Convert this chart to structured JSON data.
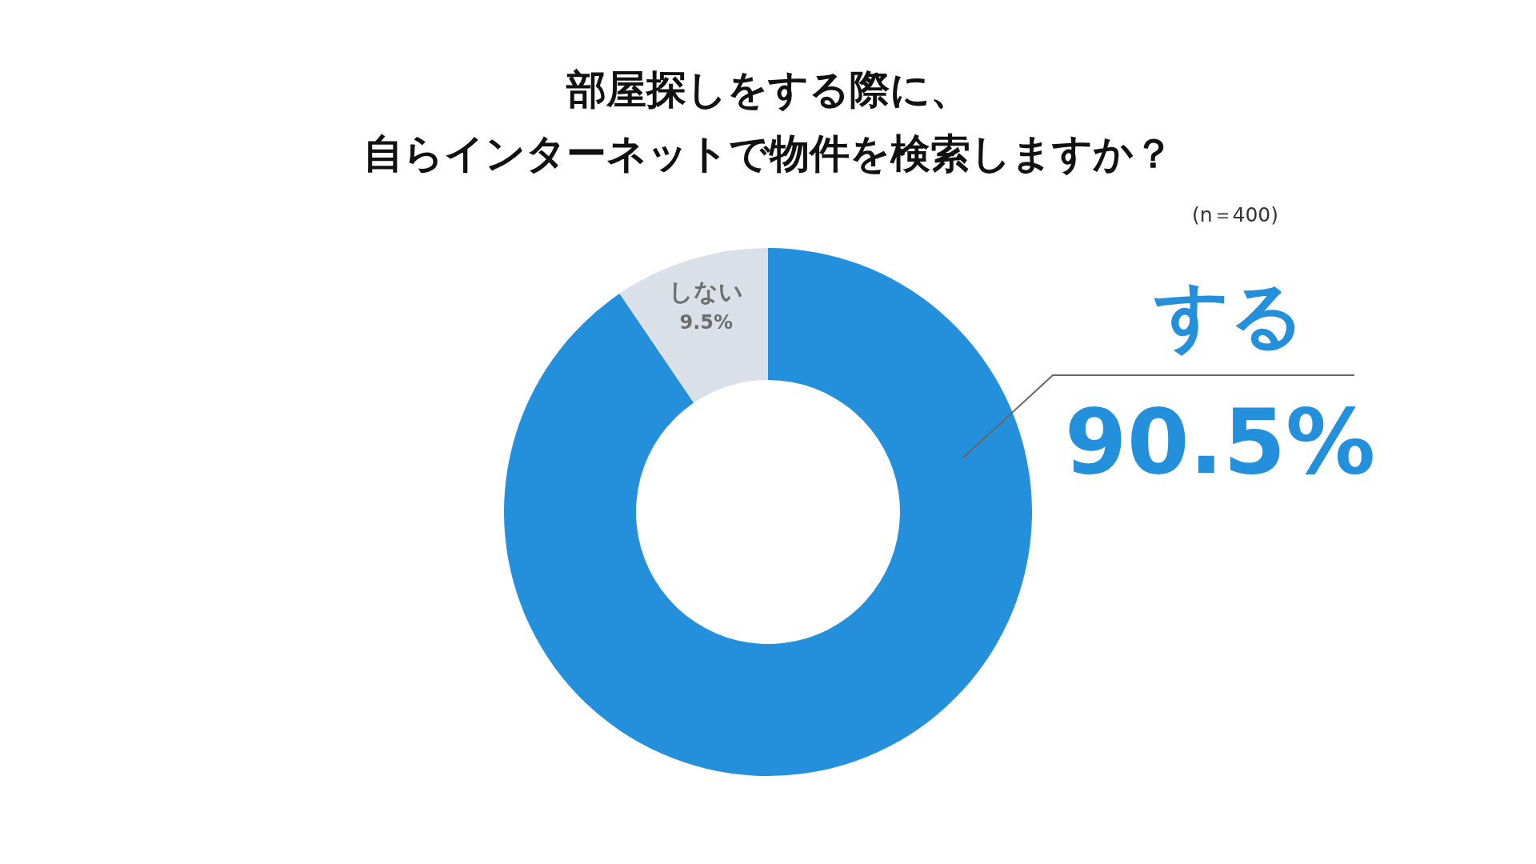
{
  "chart_data": {
    "type": "donut",
    "title": "部屋探しをする際に、",
    "subtitle": "自らインターネットで物件を検索しますか？",
    "annotations": [
      "(n＝400)"
    ],
    "categories": [
      "する",
      "しない"
    ],
    "values": [
      90.5,
      9.5
    ],
    "colors": [
      "#2490dc",
      "#dae0e8"
    ],
    "value_labels": [
      "90.5%",
      "9.5%"
    ],
    "legend": false
  }
}
